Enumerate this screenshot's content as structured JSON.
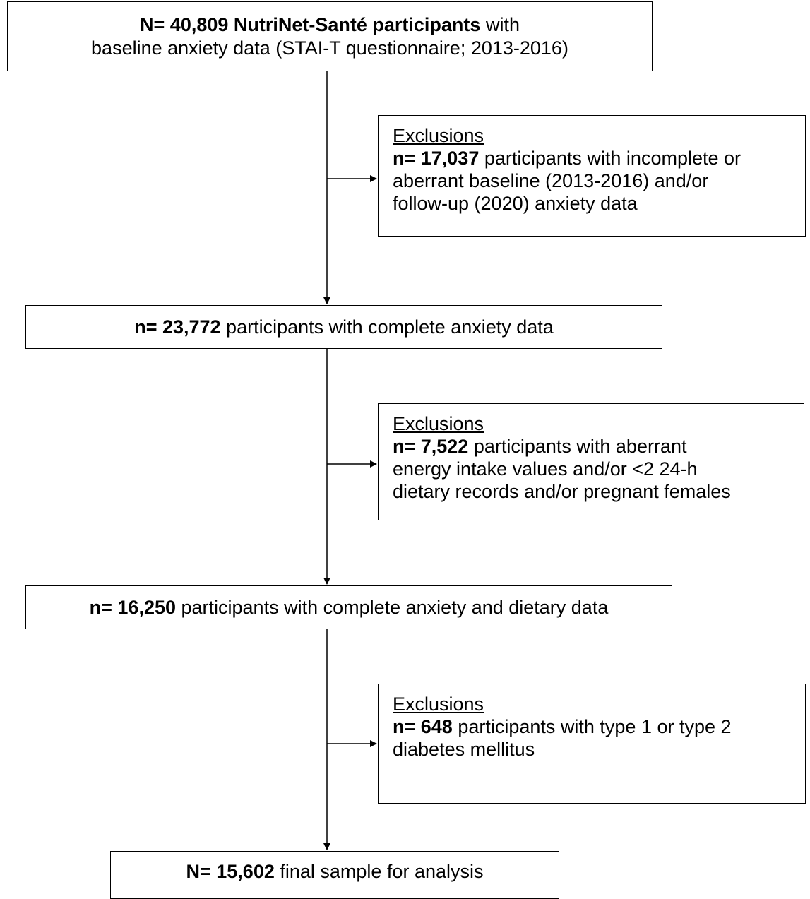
{
  "nodes": {
    "start": {
      "line1_bold": "N= 40,809 NutriNet-Santé participants",
      "line1_rest": " with",
      "line2": "baseline anxiety data (STAI-T questionnaire; 2013-2016)"
    },
    "exclusion1": {
      "heading": "Exclusions",
      "count_bold": "n= 17,037",
      "line1_rest": " participants with incomplete or",
      "line2": "aberrant baseline (2013-2016) and/or",
      "line3": "follow-up (2020) anxiety data"
    },
    "step2": {
      "count_bold": "n= 23,772",
      "rest": " participants with complete anxiety data"
    },
    "exclusion2": {
      "heading": "Exclusions",
      "count_bold": "n= 7,522",
      "line1_rest": " participants with aberrant",
      "line2": "energy intake values and/or <2 24-h",
      "line3": "dietary records and/or pregnant females"
    },
    "step3": {
      "count_bold": "n= 16,250",
      "rest": " participants with complete anxiety and dietary data"
    },
    "exclusion3": {
      "heading": "Exclusions",
      "count_bold": "n= 648",
      "line1_rest": " participants with type 1 or type 2",
      "line2": "diabetes mellitus"
    },
    "final": {
      "count_bold": "N= 15,602",
      "rest": " final sample for analysis"
    }
  }
}
